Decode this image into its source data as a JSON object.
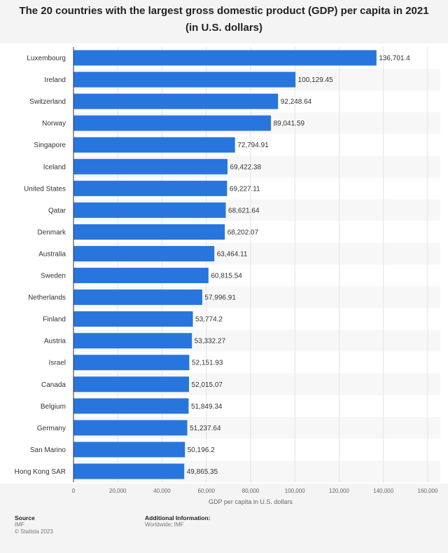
{
  "chart_data": {
    "type": "bar",
    "orientation": "horizontal",
    "title": "The 20 countries with the largest gross domestic product (GDP) per capita in 2021 (in U.S. dollars)",
    "categories": [
      "Luxembourg",
      "Ireland",
      "Switzerland",
      "Norway",
      "Singapore",
      "Iceland",
      "United States",
      "Qatar",
      "Denmark",
      "Australia",
      "Sweden",
      "Netherlands",
      "Finland",
      "Austria",
      "Israel",
      "Canada",
      "Belgium",
      "Germany",
      "San Marino",
      "Hong Kong SAR"
    ],
    "values": [
      136701.4,
      100129.45,
      92248.64,
      89041.59,
      72794.91,
      69422.38,
      69227.11,
      68621.64,
      68202.07,
      63464.11,
      60815.54,
      57996.91,
      53774.2,
      53332.27,
      52151.93,
      52015.07,
      51849.34,
      51237.64,
      50196.2,
      49865.35
    ],
    "value_labels": [
      "136,701.4",
      "100,129.45",
      "92,248.64",
      "89,041.59",
      "72,794.91",
      "69,422.38",
      "69,227.11",
      "68,621.64",
      "68,202.07",
      "63,464.11",
      "60,815.54",
      "57,996.91",
      "53,774.2",
      "53,332.27",
      "52,151.93",
      "52,015.07",
      "51,849.34",
      "51,237.64",
      "50,196.2",
      "49,865.35"
    ],
    "xlim": [
      0,
      160000
    ],
    "ticks": [
      0,
      20000,
      40000,
      60000,
      80000,
      100000,
      120000,
      140000,
      160000
    ],
    "tick_labels": [
      "0",
      "20,000",
      "40,000",
      "60,000",
      "80,000",
      "100,000",
      "120,000",
      "140,000",
      "160,000"
    ],
    "xlabel": "GDP per capita in U.S. dollars",
    "ylabel": "",
    "grid": true,
    "bar_color": "#2876dd"
  },
  "footer": {
    "source_heading": "Source",
    "source_name": "IMF",
    "copyright": "© Statista 2023",
    "info_heading": "Additional Information:",
    "info_text": "Worldwide; IMF"
  }
}
